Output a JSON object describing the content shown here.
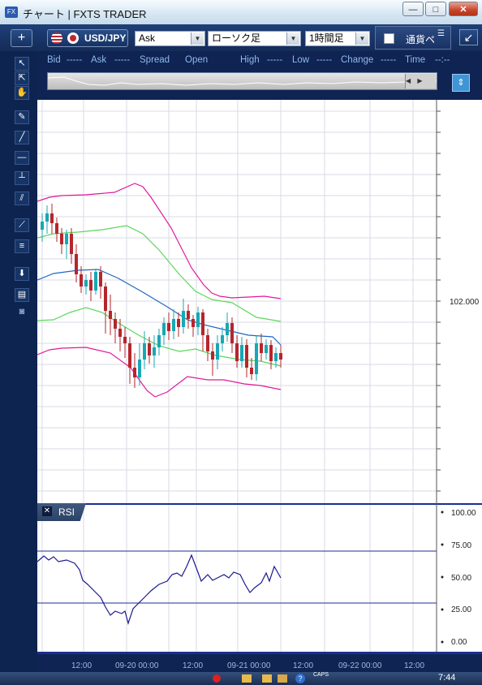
{
  "window": {
    "title": "チャート | FXTS TRADER",
    "app_icon": "FX",
    "minimize": "—",
    "maximize": "□",
    "close": "✕"
  },
  "toolbar": {
    "symbol": "USD/JPY",
    "price_side": "Ask",
    "chart_type": "ローソク足",
    "timeframe": "1時間足",
    "currency_strength_label": "通貨ペ",
    "new_chart": "+"
  },
  "quote": {
    "bid_label": "Bid",
    "bid_value": "-----",
    "ask_label": "Ask",
    "ask_value": "-----",
    "spread_label": "Spread",
    "open_label": "Open",
    "high_label": "High",
    "high_value": "-----",
    "low_label": "Low",
    "low_value": "-----",
    "change_label": "Change",
    "change_value": "-----",
    "time_label": "Time",
    "time_value": "--:--"
  },
  "price_axis": {
    "label": "102.000"
  },
  "rsi": {
    "label": "RSI",
    "ticks": [
      "100.00",
      "75.00",
      "50.00",
      "25.00",
      "0.00"
    ]
  },
  "x_axis": {
    "ticks": [
      "12:00",
      "09-20 00:00",
      "12:00",
      "09-21 00:00",
      "12:00",
      "09-22 00:00",
      "12:00"
    ]
  },
  "taskbar": {
    "clock": "7:44",
    "caps": "CAPS"
  },
  "tools": [
    "pointer-icon",
    "zoom-pointer-icon",
    "hand-icon",
    "pen-icon",
    "trend-line-icon",
    "horizontal-line-icon",
    "vertical-line-icon",
    "channel-icon",
    "fibonacci-icon",
    "fibonacci-retracement-icon",
    "download-icon",
    "list-icon",
    "camera-icon"
  ],
  "colors": {
    "frame": "#0d1b3d",
    "bollinger_outer": "#e0199a",
    "bollinger_inner": "#5cd65c",
    "moving_average": "#1f67c2",
    "candle_up": "#1aa7b5",
    "candle_down": "#b5262c",
    "rsi_line": "#1a1a8f"
  }
}
